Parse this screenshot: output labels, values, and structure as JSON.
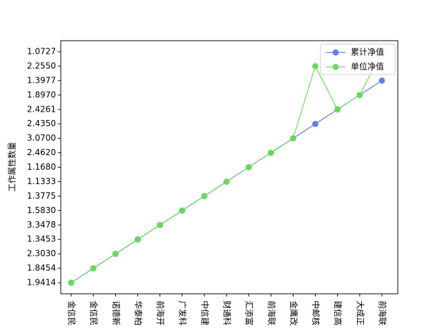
{
  "chart_data": {
    "type": "line",
    "ylabel": "工作属性数量",
    "categories": [
      "金信民",
      "金信民",
      "诺德新",
      "华泰柏",
      "前海开",
      "广发科",
      "中信建",
      "财通科",
      "汇添富",
      "前海联",
      "金鹰改",
      "中邮核",
      "建信高",
      "大成正",
      "前海联"
    ],
    "yticks": [
      1.9414,
      1.8454,
      {
        "value": 2.303,
        "label": "2.3030"
      },
      1.3453,
      3.3478,
      {
        "value": 1.583,
        "label": "1.5830"
      },
      1.3775,
      1.1333,
      {
        "value": 1.168,
        "label": "1.1680"
      },
      {
        "value": 2.462,
        "label": "2.4620"
      },
      {
        "value": 3.07,
        "label": "3.0700"
      },
      {
        "value": 2.435,
        "label": "2.4350"
      },
      2.4261,
      {
        "value": 1.897,
        "label": "1.8970"
      },
      1.3977,
      {
        "value": 2.255,
        "label": "2.2550"
      },
      1.0727
    ],
    "series": [
      {
        "name": "累计净值",
        "color": "#5f7fe6",
        "values": [
          1.9414,
          1.8454,
          2.303,
          1.3453,
          3.3478,
          1.583,
          1.3775,
          1.1333,
          1.168,
          2.462,
          3.07,
          2.435,
          2.4261,
          1.897,
          1.3977
        ]
      },
      {
        "name": "单位净值",
        "color": "#6dd75d",
        "values": [
          1.9414,
          1.8454,
          2.303,
          1.3453,
          3.3478,
          1.583,
          1.3775,
          1.1333,
          1.168,
          2.462,
          3.07,
          2.255,
          2.4261,
          1.897,
          1.0727
        ]
      }
    ],
    "legend": "upper right"
  }
}
